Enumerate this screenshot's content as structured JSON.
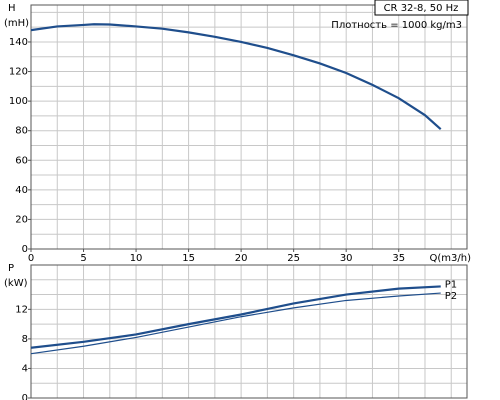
{
  "chart_data": [
    {
      "type": "line",
      "y_label": "H",
      "y_unit": "(mH)",
      "x_label": "Q(m3/h)",
      "legend_title": "CR 32-8, 50 Hz",
      "annotation": "Плотность = 1000 kg/m3",
      "x": [
        0,
        2.5,
        5,
        6,
        7.5,
        10,
        12.5,
        15,
        17.5,
        20,
        22.5,
        25,
        27.5,
        30,
        32.5,
        35,
        37.5,
        39
      ],
      "series": [
        {
          "name": "H",
          "color": "#1f4e8c",
          "values": [
            148,
            150.5,
            151.5,
            152,
            151.8,
            150.5,
            149,
            146.5,
            143.5,
            140,
            136,
            131,
            125.5,
            119,
            111,
            102,
            90.5,
            81
          ]
        }
      ],
      "xlim": [
        0,
        41.5
      ],
      "xticks": [
        0,
        5,
        10,
        15,
        20,
        25,
        30,
        35
      ],
      "xgrid": [
        2.5,
        5,
        7.5,
        10,
        12.5,
        15,
        17.5,
        20,
        22.5,
        25,
        27.5,
        30,
        32.5,
        35,
        37.5,
        40
      ],
      "ylim": [
        0,
        165
      ],
      "yticks": [
        0,
        20,
        40,
        60,
        80,
        100,
        120,
        140
      ],
      "ygrid": [
        10,
        20,
        30,
        40,
        50,
        60,
        70,
        80,
        90,
        100,
        110,
        120,
        130,
        140,
        150,
        160
      ]
    },
    {
      "type": "line",
      "y_label": "P",
      "y_unit": "(kW)",
      "x": [
        0,
        5,
        10,
        15,
        20,
        25,
        30,
        35,
        39
      ],
      "series": [
        {
          "name": "P1",
          "color": "#1f4e8c",
          "values": [
            6.8,
            7.6,
            8.6,
            10,
            11.3,
            12.8,
            14,
            14.8,
            15.1
          ]
        },
        {
          "name": "P2",
          "color": "#1f4e8c",
          "values": [
            6,
            7,
            8.2,
            9.6,
            11,
            12.2,
            13.2,
            13.8,
            14.2
          ]
        }
      ],
      "xlim": [
        0,
        41.5
      ],
      "xgrid": [
        2.5,
        5,
        7.5,
        10,
        12.5,
        15,
        17.5,
        20,
        22.5,
        25,
        27.5,
        30,
        32.5,
        35,
        37.5,
        40
      ],
      "ylim": [
        0,
        18
      ],
      "yticks": [
        0,
        4,
        8,
        12
      ],
      "ygrid": [
        2,
        4,
        6,
        8,
        10,
        12,
        14,
        16
      ]
    }
  ]
}
